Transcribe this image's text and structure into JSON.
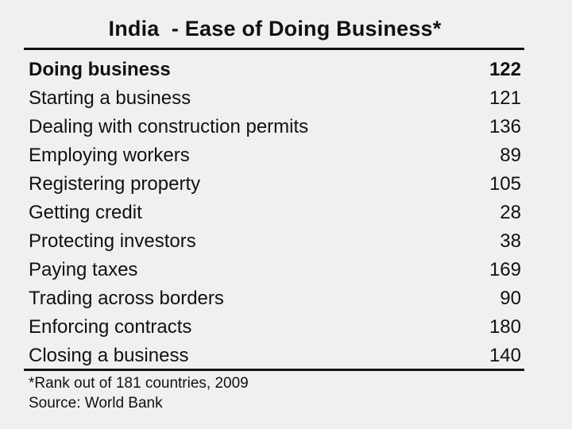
{
  "chart_data": {
    "type": "table",
    "title": "India  - Ease of Doing Business*",
    "header": {
      "label": "Doing business",
      "value": 122
    },
    "rows": [
      {
        "label": "Starting a business",
        "value": 121
      },
      {
        "label": "Dealing with construction permits",
        "value": 136
      },
      {
        "label": "Employing workers",
        "value": 89
      },
      {
        "label": "Registering property",
        "value": 105
      },
      {
        "label": "Getting credit",
        "value": 28
      },
      {
        "label": "Protecting investors",
        "value": 38
      },
      {
        "label": "Paying taxes",
        "value": 169
      },
      {
        "label": "Trading across borders",
        "value": 90
      },
      {
        "label": "Enforcing contracts",
        "value": 180
      },
      {
        "label": "Closing a business",
        "value": 140
      }
    ],
    "footnote": "*Rank out of 181 countries, 2009",
    "source": "Source: World Bank"
  }
}
